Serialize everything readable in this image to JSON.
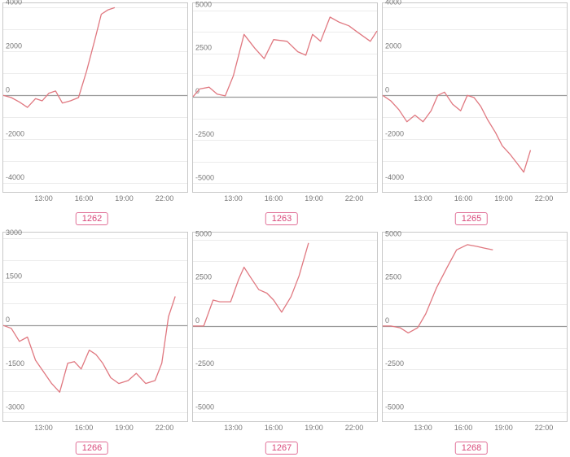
{
  "chart_data": [
    {
      "type": "line",
      "label": "1262",
      "ylim": [
        -4400,
        4200
      ],
      "yticks": [
        4000,
        2000,
        0,
        -2000,
        -4000
      ],
      "xlim": [
        10.0,
        23.7
      ],
      "xticks": [
        {
          "v": 13,
          "t": "13:00"
        },
        {
          "v": 16,
          "t": "16:00"
        },
        {
          "v": 19,
          "t": "19:00"
        },
        {
          "v": 22,
          "t": "22:00"
        }
      ],
      "color": "#e07880",
      "x": [
        10.0,
        10.6,
        11.2,
        11.8,
        12.4,
        12.9,
        13.4,
        13.9,
        14.4,
        15.0,
        15.6,
        16.2,
        16.8,
        17.3,
        17.8,
        18.3
      ],
      "y": [
        0,
        -100,
        -300,
        -550,
        -150,
        -250,
        100,
        200,
        -350,
        -250,
        -100,
        1100,
        2500,
        3700,
        3900,
        4000
      ]
    },
    {
      "type": "line",
      "label": "1263",
      "ylim": [
        -5500,
        5400
      ],
      "yticks": [
        5000,
        2500,
        0,
        -2500,
        -5000
      ],
      "xlim": [
        10.0,
        23.7
      ],
      "xticks": [
        {
          "v": 13,
          "t": "13:00"
        },
        {
          "v": 16,
          "t": "16:00"
        },
        {
          "v": 19,
          "t": "19:00"
        },
        {
          "v": 22,
          "t": "22:00"
        }
      ],
      "color": "#e07880",
      "x": [
        10.0,
        10.5,
        11.2,
        11.8,
        12.4,
        13.0,
        13.8,
        14.6,
        15.3,
        16.0,
        17.0,
        17.8,
        18.4,
        18.9,
        19.5,
        20.2,
        20.9,
        21.6,
        22.3,
        23.2,
        24.1
      ],
      "y": [
        0,
        450,
        550,
        150,
        50,
        1200,
        3600,
        2800,
        2200,
        3300,
        3200,
        2600,
        2400,
        3600,
        3200,
        4600,
        4300,
        4100,
        3700,
        3200,
        3800
      ]
    },
    {
      "type": "line",
      "label": "1265",
      "ylim": [
        -4400,
        4200
      ],
      "yticks": [
        4000,
        2000,
        0,
        -2000,
        -4000
      ],
      "xlim": [
        10.0,
        23.7
      ],
      "xticks": [
        {
          "v": 13,
          "t": "13:00"
        },
        {
          "v": 16,
          "t": "16:00"
        },
        {
          "v": 19,
          "t": "19:00"
        },
        {
          "v": 22,
          "t": "22:00"
        }
      ],
      "color": "#e07880",
      "x": [
        10.0,
        10.6,
        11.2,
        11.8,
        12.4,
        13.0,
        13.6,
        14.1,
        14.6,
        15.2,
        15.8,
        16.3,
        16.8,
        17.3,
        17.8,
        18.4,
        18.9,
        19.5,
        20.0,
        20.5,
        21.0
      ],
      "y": [
        0,
        -250,
        -650,
        -1200,
        -900,
        -1200,
        -700,
        0,
        150,
        -400,
        -700,
        0,
        -100,
        -500,
        -1100,
        -1700,
        -2300,
        -2700,
        -3100,
        -3500,
        -2500
      ]
    },
    {
      "type": "line",
      "label": "1266",
      "ylim": [
        -3300,
        3200
      ],
      "yticks": [
        3000,
        1500,
        0,
        -1500,
        -3000
      ],
      "xlim": [
        10.0,
        23.7
      ],
      "xticks": [
        {
          "v": 13,
          "t": "13:00"
        },
        {
          "v": 16,
          "t": "16:00"
        },
        {
          "v": 19,
          "t": "19:00"
        },
        {
          "v": 22,
          "t": "22:00"
        }
      ],
      "color": "#e07880",
      "x": [
        10.0,
        10.6,
        11.2,
        11.8,
        12.4,
        13.0,
        13.6,
        14.2,
        14.8,
        15.3,
        15.8,
        16.4,
        16.9,
        17.4,
        18.0,
        18.6,
        19.3,
        19.9,
        20.6,
        21.3,
        21.8,
        22.3,
        22.8
      ],
      "y": [
        0,
        -100,
        -550,
        -400,
        -1200,
        -1600,
        -2000,
        -2300,
        -1300,
        -1250,
        -1500,
        -850,
        -1000,
        -1300,
        -1800,
        -2000,
        -1900,
        -1650,
        -2000,
        -1900,
        -1300,
        300,
        1000
      ]
    },
    {
      "type": "line",
      "label": "1267",
      "ylim": [
        -5500,
        5400
      ],
      "yticks": [
        5000,
        2500,
        0,
        -2500,
        -5000
      ],
      "xlim": [
        10.0,
        23.7
      ],
      "xticks": [
        {
          "v": 13,
          "t": "13:00"
        },
        {
          "v": 16,
          "t": "16:00"
        },
        {
          "v": 19,
          "t": "19:00"
        },
        {
          "v": 22,
          "t": "22:00"
        }
      ],
      "color": "#e07880",
      "x": [
        10.0,
        10.8,
        11.5,
        12.0,
        12.8,
        13.4,
        13.8,
        14.3,
        14.9,
        15.5,
        16.0,
        16.6,
        17.3,
        17.9,
        18.6
      ],
      "y": [
        0,
        0,
        1500,
        1400,
        1400,
        2700,
        3400,
        2800,
        2100,
        1900,
        1500,
        800,
        1700,
        2900,
        4800
      ]
    },
    {
      "type": "line",
      "label": "1268",
      "ylim": [
        -5500,
        5400
      ],
      "yticks": [
        5000,
        2500,
        0,
        -2500,
        -5000
      ],
      "xlim": [
        10.0,
        23.7
      ],
      "xticks": [
        {
          "v": 13,
          "t": "13:00"
        },
        {
          "v": 16,
          "t": "16:00"
        },
        {
          "v": 19,
          "t": "19:00"
        },
        {
          "v": 22,
          "t": "22:00"
        }
      ],
      "color": "#e07880",
      "x": [
        10.0,
        10.6,
        11.3,
        11.9,
        12.6,
        13.2,
        14.0,
        14.8,
        15.5,
        16.3,
        17.0,
        17.6,
        18.2
      ],
      "y": [
        0,
        0,
        -100,
        -400,
        -100,
        700,
        2200,
        3400,
        4400,
        4700,
        4600,
        4500,
        4400
      ]
    }
  ]
}
